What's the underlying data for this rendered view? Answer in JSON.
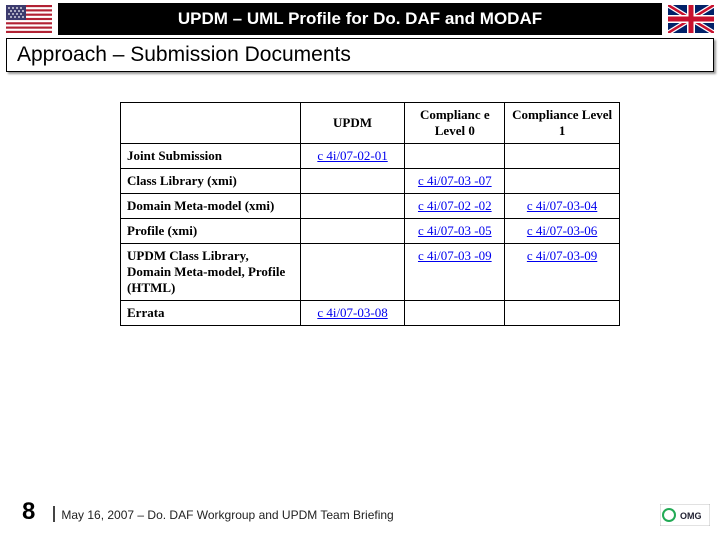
{
  "header": {
    "title": "UPDM – UML Profile for Do. DAF and MODAF"
  },
  "subtitle": "Approach – Submission Documents",
  "table": {
    "columns": [
      "",
      "UPDM",
      "Complianc e Level 0",
      "Compliance Level 1"
    ],
    "rows": [
      {
        "label": "Joint Submission",
        "updm": "c 4i/07-02-01",
        "lvl0": "",
        "lvl1": ""
      },
      {
        "label": "Class Library (xmi)",
        "updm": "",
        "lvl0": "c 4i/07-03 -07",
        "lvl1": ""
      },
      {
        "label": "Domain Meta-model (xmi)",
        "updm": "",
        "lvl0": "c 4i/07-02 -02",
        "lvl1": "c 4i/07-03-04"
      },
      {
        "label": "Profile (xmi)",
        "updm": "",
        "lvl0": "c 4i/07-03 -05",
        "lvl1": "c 4i/07-03-06"
      },
      {
        "label": "UPDM Class Library, Domain Meta-model, Profile (HTML)",
        "updm": "",
        "lvl0": "c 4i/07-03 -09",
        "lvl1": "c 4i/07-03-09"
      },
      {
        "label": "Errata",
        "updm": "c 4i/07-03-08",
        "lvl0": "",
        "lvl1": ""
      }
    ]
  },
  "footer": {
    "page": "8",
    "text": "May 16, 2007 – Do. DAF Workgroup and UPDM Team Briefing"
  }
}
